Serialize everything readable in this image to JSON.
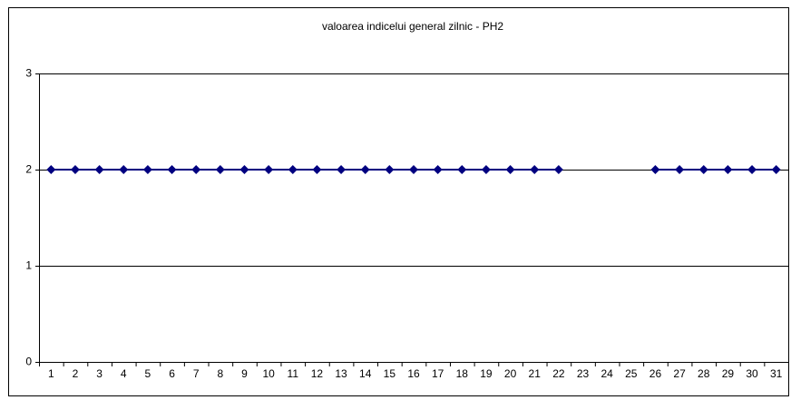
{
  "chart_data": {
    "type": "line",
    "title": "valoarea indicelui general zilnic - PH2",
    "categories": [
      "1",
      "2",
      "3",
      "4",
      "5",
      "6",
      "7",
      "8",
      "9",
      "10",
      "11",
      "12",
      "13",
      "14",
      "15",
      "16",
      "17",
      "18",
      "19",
      "20",
      "21",
      "22",
      "23",
      "24",
      "25",
      "26",
      "27",
      "28",
      "29",
      "30",
      "31"
    ],
    "series": [
      {
        "name": "PH2",
        "color": "#000080",
        "values": [
          2,
          2,
          2,
          2,
          2,
          2,
          2,
          2,
          2,
          2,
          2,
          2,
          2,
          2,
          2,
          2,
          2,
          2,
          2,
          2,
          2,
          2,
          null,
          null,
          null,
          2,
          2,
          2,
          2,
          2,
          2
        ]
      }
    ],
    "ylim": [
      0,
      3
    ],
    "yticks": [
      0,
      1,
      2,
      3
    ],
    "grid": true
  }
}
